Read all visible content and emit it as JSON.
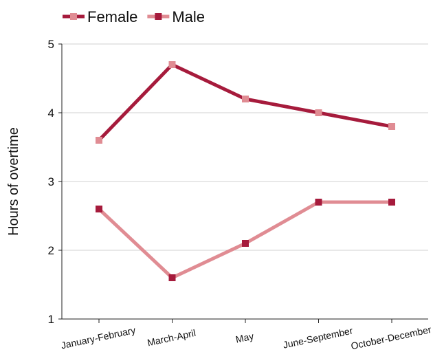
{
  "chart_data": {
    "type": "line",
    "categories": [
      "January-February",
      "March-April",
      "May",
      "June-September",
      "October-December"
    ],
    "series": [
      {
        "name": "Female",
        "values": [
          3.6,
          4.7,
          4.2,
          4.0,
          3.8
        ],
        "line_color": "#a61b3c",
        "marker_color": "#e08c93"
      },
      {
        "name": "Male",
        "values": [
          2.6,
          1.6,
          2.1,
          2.7,
          2.7
        ],
        "line_color": "#e08c93",
        "marker_color": "#a61b3c"
      }
    ],
    "ylabel": "Hours of overtime",
    "ylim": [
      1,
      5
    ],
    "yticks": [
      1,
      2,
      3,
      4,
      5
    ],
    "grid": true,
    "legend_position": "top-left"
  }
}
